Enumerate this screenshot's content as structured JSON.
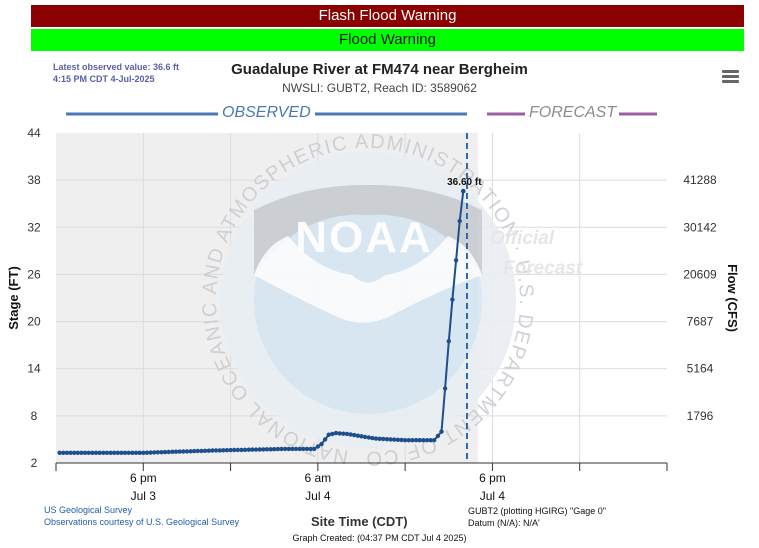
{
  "banners": {
    "warning1": "Flash Flood Warning",
    "warning2": "Flood Warning"
  },
  "latest": {
    "line1": "Latest observed value: 36.6 ft",
    "line2": "4:15 PM CDT 4-Jul-2025"
  },
  "header": {
    "title": "Guadalupe River at FM474 near Bergheim",
    "subtitle": "NWSLI: GUBT2, Reach ID: 3589062"
  },
  "legend": {
    "observed": "OBSERVED",
    "forecast": "FORECAST"
  },
  "footer": {
    "source1": "US Geological Survey",
    "source2": "Observations courtesy of U.S. Geological Survey",
    "gage1": "GUBT2 (plotting HGIRG) \"Gage 0\"",
    "gage2": "Datum (N/A): N/A'",
    "xtitle": "Site Time (CDT)",
    "created": "Graph Created: (04:37 PM CDT Jul 4 2025)"
  },
  "watermark": {
    "logo": "NOAA",
    "ring": "NATIONAL OCEANIC AND ATMOSPHERIC ADMINISTRATION · U.S. DEPARTMENT OF COMMERCE",
    "fc1": "Official",
    "fc2": "Forecast"
  },
  "colors": {
    "flash_flood_warning": "#8b0000",
    "flood_warning": "#00ff00",
    "series": "#1f4e8c",
    "observed_legend": "#4a78b5",
    "forecast_legend": "#9b5fa3"
  },
  "chart_data": {
    "type": "line",
    "title": "Guadalupe River at FM474 near Bergheim",
    "ylabel": "Stage (FT)",
    "y2label": "Flow (CFS)",
    "ylim": [
      2,
      44
    ],
    "yticks": [
      2,
      8,
      14,
      20,
      26,
      32,
      38,
      44
    ],
    "y2ticks": [
      {
        "stage": 8,
        "label": "1796"
      },
      {
        "stage": 14,
        "label": "5164"
      },
      {
        "stage": 20,
        "label": "7687"
      },
      {
        "stage": 26,
        "label": "20609"
      },
      {
        "stage": 32,
        "label": "30142"
      },
      {
        "stage": 38,
        "label": "41288"
      }
    ],
    "xlim_hours": [
      -6,
      36
    ],
    "xticks": [
      {
        "h": 0,
        "line1": "6 pm",
        "line2": "Jul 3"
      },
      {
        "h": 12,
        "line1": "6 am",
        "line2": "Jul 4"
      },
      {
        "h": 24,
        "line1": "6 pm",
        "line2": "Jul 4"
      }
    ],
    "xminor_hours": [
      -6,
      6,
      18,
      30,
      36
    ],
    "forecast_start_h": 22.25,
    "peak_label": "36.60 ft",
    "grid": true,
    "legend": "top",
    "series": [
      {
        "x_hours": [
          -5.75,
          0,
          5,
          10,
          11.75,
          12.25,
          12.75,
          13.25,
          14,
          15,
          16,
          17,
          18,
          19,
          20,
          20.5,
          20.75,
          21,
          21.25,
          21.5,
          21.75,
          22,
          22.25
        ],
        "y": [
          3.3,
          3.3,
          3.6,
          3.8,
          3.8,
          4.4,
          5.6,
          5.8,
          5.7,
          5.4,
          5.1,
          5.0,
          4.9,
          4.9,
          4.9,
          6.0,
          11.5,
          17.5,
          22.8,
          27.8,
          32.8,
          36.6,
          36.6
        ]
      }
    ]
  }
}
